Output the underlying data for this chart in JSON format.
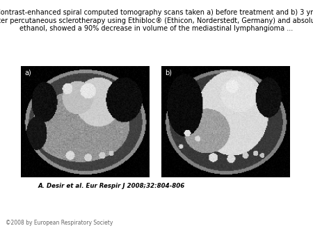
{
  "title_text": "Contrast-enhanced spiral computed tomography scans taken a) before treatment and b) 3 yrs\nafter percutaneous sclerotherapy using Ethibloc® (Ethicon, Norderstedt, Germany) and absolute\nethanol, showed a 90% decrease in volume of the mediastinal lymphangioma ...",
  "citation": "A. Desir et al. Eur Respir J 2008;32:804-806",
  "copyright": "©2008 by European Respiratory Society",
  "bg_color": "#ffffff",
  "title_fontsize": 7.0,
  "citation_fontsize": 6.2,
  "copyright_fontsize": 5.5,
  "label_a": "a)",
  "label_b": "b)"
}
